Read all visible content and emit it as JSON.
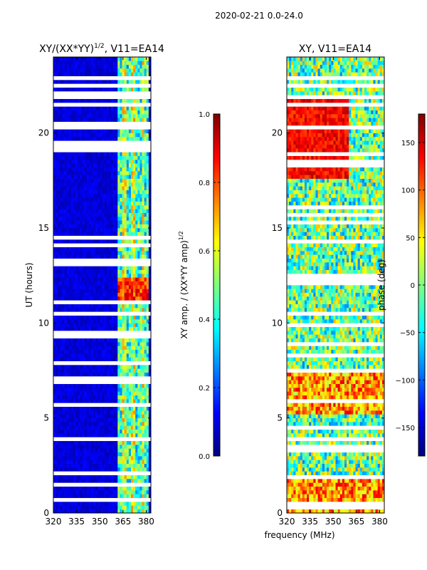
{
  "suptitle": "2020-02-21 0.0-24.0",
  "xlabel": "frequency (MHz)",
  "colormap": [
    "#00007f",
    "#0000ff",
    "#007fff",
    "#00ffff",
    "#7fff7f",
    "#ffff00",
    "#ff7f00",
    "#ff0000",
    "#7f0000"
  ],
  "chart_data": [
    {
      "type": "heatmap",
      "title": "XY/(XX*YY)^{1/2}, V11=EA14",
      "title_main": "XY/(XX*YY)",
      "title_exp": "1/2",
      "title_tail": ", V11=EA14",
      "xlabel": "frequency (MHz)",
      "ylabel": "UT (hours)",
      "xlim": [
        320,
        383
      ],
      "ylim": [
        0,
        24
      ],
      "xticks": [
        "320",
        "335",
        "350",
        "365",
        "380"
      ],
      "yticks": [
        "0",
        "5",
        "10",
        "15",
        "20"
      ],
      "xtick_values": [
        320,
        335,
        350,
        365,
        380
      ],
      "ytick_values": [
        0,
        5,
        10,
        15,
        20
      ],
      "colorbar": {
        "label": "XY amp. / (XX*YY amp)^{1/2}",
        "label_main": "XY amp. / (XX*YY amp)",
        "label_exp": "1/2",
        "range": [
          0.0,
          1.0
        ],
        "ticks": [
          "0.0",
          "0.2",
          "0.4",
          "0.6",
          "0.8",
          "1.0"
        ],
        "tick_values": [
          0.0,
          0.2,
          0.4,
          0.6,
          0.8,
          1.0
        ]
      }
    },
    {
      "type": "heatmap",
      "title": "XY, V11=EA14",
      "xlabel": "frequency (MHz)",
      "ylabel": "",
      "xlim": [
        320,
        383
      ],
      "ylim": [
        0,
        24
      ],
      "xticks": [
        "320",
        "335",
        "350",
        "365",
        "380"
      ],
      "yticks": [
        "0",
        "5",
        "10",
        "15",
        "20"
      ],
      "xtick_values": [
        320,
        335,
        350,
        365,
        380
      ],
      "ytick_values": [
        0,
        5,
        10,
        15,
        20
      ],
      "colorbar": {
        "label": "phase (deg)",
        "range": [
          -180,
          180
        ],
        "ticks": [
          "−150",
          "−100",
          "−50",
          "0",
          "50",
          "100",
          "150"
        ],
        "tick_values": [
          -150,
          -100,
          -50,
          0,
          50,
          100,
          150
        ]
      }
    }
  ]
}
